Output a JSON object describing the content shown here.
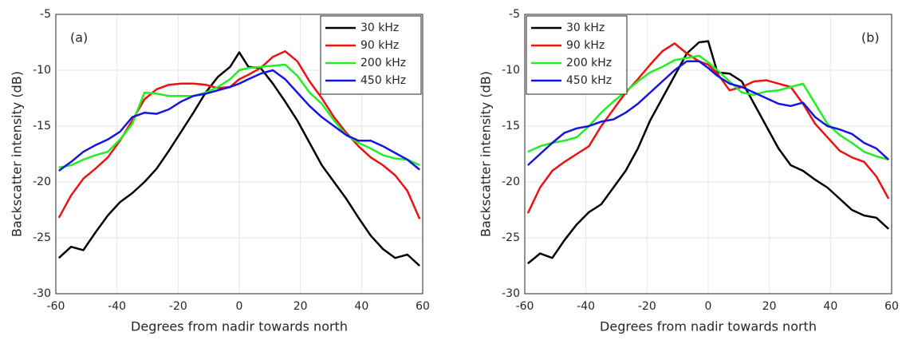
{
  "chart_data": [
    {
      "type": "line",
      "annotation": "(a)",
      "xlabel": "Degrees from nadir towards north",
      "ylabel": "Backscatter intensity (dB)",
      "xlim": [
        -60,
        60
      ],
      "ylim": [
        -30,
        -5
      ],
      "xticks": [
        -60,
        -40,
        -20,
        0,
        20,
        40,
        60
      ],
      "yticks": [
        -30,
        -25,
        -20,
        -15,
        -10,
        -5
      ],
      "grid": true,
      "legend": "upper right",
      "x": [
        -59,
        -55,
        -51,
        -47,
        -43,
        -39,
        -35,
        -31,
        -27,
        -23,
        -19,
        -15,
        -11,
        -7,
        -3,
        0,
        3,
        7,
        11,
        15,
        19,
        23,
        27,
        31,
        35,
        39,
        43,
        47,
        51,
        55,
        59
      ],
      "series": [
        {
          "name": "30 kHz",
          "color": "#000000",
          "values": [
            -26.8,
            -25.8,
            -26.1,
            -24.5,
            -23.0,
            -21.8,
            -21.0,
            -20.0,
            -18.8,
            -17.2,
            -15.5,
            -13.8,
            -12.0,
            -10.6,
            -9.7,
            -8.4,
            -9.7,
            -9.8,
            -11.2,
            -12.8,
            -14.5,
            -16.5,
            -18.5,
            -20.0,
            -21.5,
            -23.2,
            -24.8,
            -26.0,
            -26.8,
            -26.5,
            -27.5
          ]
        },
        {
          "name": "90 kHz",
          "color": "#ee1111",
          "values": [
            -23.2,
            -21.2,
            -19.7,
            -18.8,
            -17.8,
            -16.3,
            -14.5,
            -12.6,
            -11.7,
            -11.3,
            -11.2,
            -11.2,
            -11.3,
            -11.6,
            -11.5,
            -10.8,
            -10.4,
            -9.8,
            -8.8,
            -8.3,
            -9.2,
            -11.0,
            -12.5,
            -14.2,
            -15.6,
            -16.8,
            -17.8,
            -18.5,
            -19.4,
            -20.8,
            -23.3
          ]
        },
        {
          "name": "200 kHz",
          "color": "#22ee22",
          "values": [
            -18.7,
            -18.5,
            -18.0,
            -17.6,
            -17.3,
            -16.2,
            -14.8,
            -12.0,
            -12.1,
            -12.3,
            -12.3,
            -12.3,
            -12.0,
            -11.5,
            -10.8,
            -10.0,
            -9.8,
            -9.7,
            -9.6,
            -9.5,
            -10.5,
            -12.0,
            -13.0,
            -14.5,
            -15.8,
            -16.5,
            -17.0,
            -17.6,
            -17.9,
            -18.0,
            -18.5
          ]
        },
        {
          "name": "450 kHz",
          "color": "#1515e0",
          "values": [
            -19.0,
            -18.2,
            -17.3,
            -16.7,
            -16.2,
            -15.5,
            -14.2,
            -13.8,
            -13.9,
            -13.5,
            -12.8,
            -12.3,
            -12.1,
            -11.8,
            -11.5,
            -11.2,
            -10.8,
            -10.3,
            -10.0,
            -10.8,
            -12.0,
            -13.2,
            -14.2,
            -15.0,
            -15.8,
            -16.3,
            -16.3,
            -16.8,
            -17.4,
            -18.0,
            -18.9
          ]
        }
      ]
    },
    {
      "type": "line",
      "annotation": "(b)",
      "xlabel": "Degrees from nadir towards north",
      "ylabel": "Backscatter intensity (dB)",
      "xlim": [
        -60,
        60
      ],
      "ylim": [
        -30,
        -5
      ],
      "xticks": [
        -60,
        -40,
        -20,
        0,
        20,
        40,
        60
      ],
      "yticks": [
        -30,
        -25,
        -20,
        -15,
        -10,
        -5
      ],
      "grid": true,
      "legend": "upper left",
      "x": [
        -59,
        -55,
        -51,
        -47,
        -43,
        -39,
        -35,
        -31,
        -27,
        -23,
        -19,
        -15,
        -11,
        -7,
        -3,
        0,
        3,
        7,
        11,
        15,
        19,
        23,
        27,
        31,
        35,
        39,
        43,
        47,
        51,
        55,
        59
      ],
      "series": [
        {
          "name": "30 kHz",
          "color": "#000000",
          "values": [
            -27.3,
            -26.4,
            -26.8,
            -25.2,
            -23.8,
            -22.7,
            -22.0,
            -20.5,
            -19.0,
            -17.0,
            -14.5,
            -12.5,
            -10.5,
            -8.5,
            -7.5,
            -7.4,
            -10.2,
            -10.3,
            -11.0,
            -13.0,
            -15.0,
            -17.0,
            -18.5,
            -19.0,
            -19.8,
            -20.5,
            -21.5,
            -22.5,
            -23.0,
            -23.2,
            -24.2
          ]
        },
        {
          "name": "90 kHz",
          "color": "#ee1111",
          "values": [
            -22.8,
            -20.5,
            -19.0,
            -18.2,
            -17.5,
            -16.8,
            -15.0,
            -13.5,
            -12.0,
            -10.8,
            -9.5,
            -8.3,
            -7.6,
            -8.5,
            -9.2,
            -9.5,
            -10.3,
            -11.8,
            -11.5,
            -11.0,
            -10.9,
            -11.2,
            -11.5,
            -13.0,
            -14.8,
            -16.0,
            -17.2,
            -17.8,
            -18.2,
            -19.5,
            -21.5
          ]
        },
        {
          "name": "200 kHz",
          "color": "#22ee22",
          "values": [
            -17.3,
            -16.8,
            -16.5,
            -16.3,
            -16.0,
            -15.0,
            -13.8,
            -12.8,
            -11.9,
            -11.0,
            -10.2,
            -9.7,
            -9.1,
            -8.9,
            -8.7,
            -9.3,
            -10.0,
            -11.0,
            -12.0,
            -12.2,
            -11.9,
            -11.8,
            -11.5,
            -11.2,
            -13.0,
            -14.8,
            -15.8,
            -16.5,
            -17.3,
            -17.7,
            -18.0
          ]
        },
        {
          "name": "450 kHz",
          "color": "#1515e0",
          "values": [
            -18.5,
            -17.5,
            -16.5,
            -15.6,
            -15.2,
            -15.0,
            -14.6,
            -14.4,
            -13.8,
            -13.0,
            -12.0,
            -11.0,
            -10.0,
            -9.2,
            -9.2,
            -9.8,
            -10.5,
            -11.2,
            -11.5,
            -12.0,
            -12.5,
            -13.0,
            -13.2,
            -12.9,
            -14.2,
            -15.0,
            -15.3,
            -15.7,
            -16.5,
            -17.0,
            -18.0
          ]
        }
      ]
    }
  ]
}
